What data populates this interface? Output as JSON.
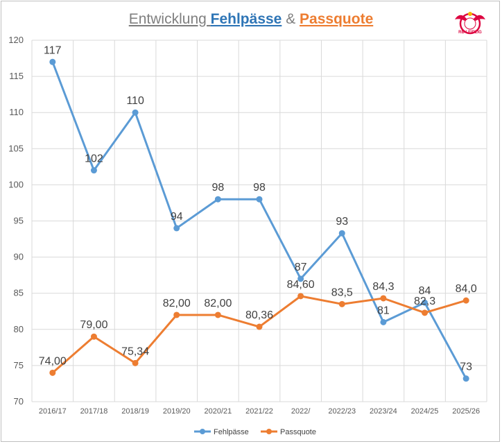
{
  "chart_data": {
    "type": "line",
    "title": {
      "prefix": "Entwicklung ",
      "series1": "Fehlpässe",
      "joiner": " & ",
      "series2": "Passquote"
    },
    "categories": [
      "2016/17",
      "2017/18",
      "2018/19",
      "2019/20",
      "2020/21",
      "2021/22",
      "2022/",
      "2022/23",
      "2023/24",
      "2024/25",
      "2025/26"
    ],
    "ylim": [
      70,
      120
    ],
    "yticks": [
      "70",
      "75",
      "80",
      "85",
      "90",
      "95",
      "100",
      "105",
      "110",
      "115",
      "120"
    ],
    "grid": true,
    "legend_position": "bottom",
    "series": [
      {
        "name": "Fehlpässe",
        "color": "#5b9bd5",
        "values": [
          117,
          102,
          110,
          94,
          98,
          98,
          87,
          93.3,
          81,
          83.7,
          73.2
        ],
        "labels": [
          "117",
          "102",
          "110",
          "94",
          "98",
          "98",
          "87",
          "93",
          "81",
          "84",
          "73"
        ]
      },
      {
        "name": "Passquote",
        "color": "#ed7d31",
        "values": [
          74.0,
          79.0,
          75.34,
          82.0,
          82.0,
          80.36,
          84.6,
          83.5,
          84.3,
          82.3,
          84.0
        ],
        "labels": [
          "74,00",
          "79,00",
          "75,34",
          "82,00",
          "82,00",
          "80,36",
          "84,60",
          "83,5",
          "84,3",
          "82,3",
          "84,0"
        ]
      }
    ]
  },
  "colors": {
    "title_gray": "#7f7f7f",
    "title_blue": "#2e75b6",
    "title_orange": "#ed7d31",
    "logo_red": "#dd0741",
    "logo_gold": "#f5b800"
  },
  "logo": {
    "text": "RB LEIPZIG",
    "icon": "rb-leipzig-crest"
  }
}
